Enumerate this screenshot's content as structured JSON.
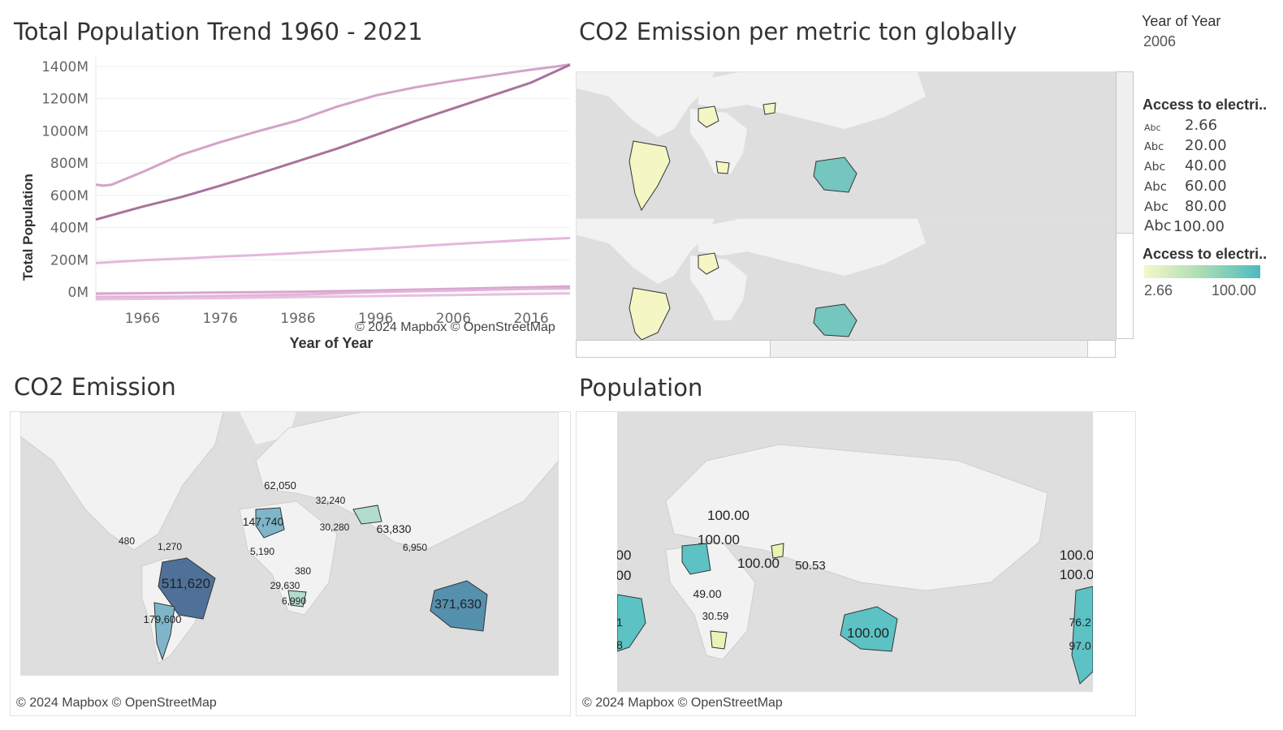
{
  "titles": {
    "population_trend": "Total Population Trend 1960 - 2021",
    "co2_per_metric_ton": "CO2 Emission per metric ton globally",
    "co2_emission": "CO2 Emission",
    "population": "Population"
  },
  "credits": {
    "mapbox": "© 2024 Mapbox © OpenStreetMap"
  },
  "filter": {
    "title": "Year of Year",
    "value": "2006"
  },
  "legend_shape": {
    "title": "Access to electri..",
    "abc": "Abc",
    "items": [
      "2.66",
      "20.00",
      "40.00",
      "60.00",
      "80.00",
      "100.00"
    ]
  },
  "legend_color": {
    "title": "Access to electri..",
    "min_label": "2.66",
    "max_label": "100.00",
    "colors": [
      "#f6f7c8",
      "#4dbbbf"
    ]
  },
  "colors": {
    "line_light": "#d4a3c8",
    "line_dark": "#a8729c",
    "line_pale": "#e4b8dc",
    "land": "#f2f2f2",
    "ocean": "#dedede",
    "co2_dark": "#4f7199",
    "co2_mid": "#5590ad",
    "co2_light": "#8ec3cc",
    "pop_teal": "#5cc2c4",
    "pop_yellow": "#eaf2b4"
  },
  "co2_map_labels": [
    "62,050",
    "32,240",
    "147,740",
    "30,280",
    "63,830",
    "480",
    "1,270",
    "5,190",
    "380",
    "6,950",
    "29,630",
    "6,990",
    "511,620",
    "371,630",
    "179,600"
  ],
  "population_map_labels": [
    "100.00",
    "100.00",
    "100.00",
    "50.53",
    "49.00",
    "30.59",
    "100.00",
    "00",
    "00",
    "1",
    "8",
    "100.0",
    "100.0",
    "76.2",
    "97.0"
  ],
  "chart_data": {
    "type": "line",
    "title": "Total Population Trend 1960 - 2021",
    "xlabel": "Year of Year",
    "ylabel": "Total Population",
    "x_ticks": [
      "1966",
      "1976",
      "1986",
      "1996",
      "2006",
      "2016"
    ],
    "y_ticks": [
      "0M",
      "200M",
      "400M",
      "600M",
      "800M",
      "1000M",
      "1200M",
      "1400M"
    ],
    "xlim": [
      1960,
      2021
    ],
    "ylim": [
      -60,
      1460
    ],
    "grid": true,
    "series": [
      {
        "color": "#d4a3c8",
        "points": [
          [
            1960,
            667
          ],
          [
            1961,
            660
          ],
          [
            1962,
            666
          ],
          [
            1966,
            745
          ],
          [
            1971,
            852
          ],
          [
            1976,
            930
          ],
          [
            1981,
            1000
          ],
          [
            1986,
            1065
          ],
          [
            1991,
            1150
          ],
          [
            1996,
            1220
          ],
          [
            2001,
            1270
          ],
          [
            2006,
            1310
          ],
          [
            2011,
            1345
          ],
          [
            2016,
            1380
          ],
          [
            2019,
            1398
          ],
          [
            2021,
            1412
          ]
        ]
      },
      {
        "color": "#a8729c",
        "points": [
          [
            1960,
            450
          ],
          [
            1966,
            530
          ],
          [
            1971,
            590
          ],
          [
            1976,
            660
          ],
          [
            1981,
            735
          ],
          [
            1986,
            812
          ],
          [
            1991,
            890
          ],
          [
            1996,
            975
          ],
          [
            2001,
            1060
          ],
          [
            2006,
            1140
          ],
          [
            2011,
            1220
          ],
          [
            2016,
            1300
          ],
          [
            2021,
            1410
          ]
        ]
      },
      {
        "color": "#e4b8dc",
        "points": [
          [
            1960,
            180
          ],
          [
            1966,
            197
          ],
          [
            1971,
            208
          ],
          [
            1976,
            220
          ],
          [
            1981,
            230
          ],
          [
            1986,
            242
          ],
          [
            1991,
            255
          ],
          [
            1996,
            268
          ],
          [
            2001,
            283
          ],
          [
            2006,
            298
          ],
          [
            2011,
            311
          ],
          [
            2016,
            325
          ],
          [
            2021,
            335
          ]
        ]
      },
      {
        "color": "#d9a5cf",
        "points": [
          [
            1960,
            -10
          ],
          [
            1971,
            -5
          ],
          [
            1986,
            2
          ],
          [
            1996,
            10
          ],
          [
            2006,
            20
          ],
          [
            2016,
            30
          ],
          [
            2021,
            35
          ]
        ]
      },
      {
        "color": "#e2b4d9",
        "points": [
          [
            1960,
            -30
          ],
          [
            1971,
            -28
          ],
          [
            1986,
            -16
          ],
          [
            1996,
            0
          ],
          [
            2006,
            10
          ],
          [
            2016,
            20
          ],
          [
            2021,
            22
          ]
        ]
      },
      {
        "color": "#e8c0df",
        "points": [
          [
            1960,
            -45
          ],
          [
            1976,
            -38
          ],
          [
            1991,
            -28
          ],
          [
            2006,
            -18
          ],
          [
            2021,
            -8
          ]
        ]
      }
    ]
  }
}
